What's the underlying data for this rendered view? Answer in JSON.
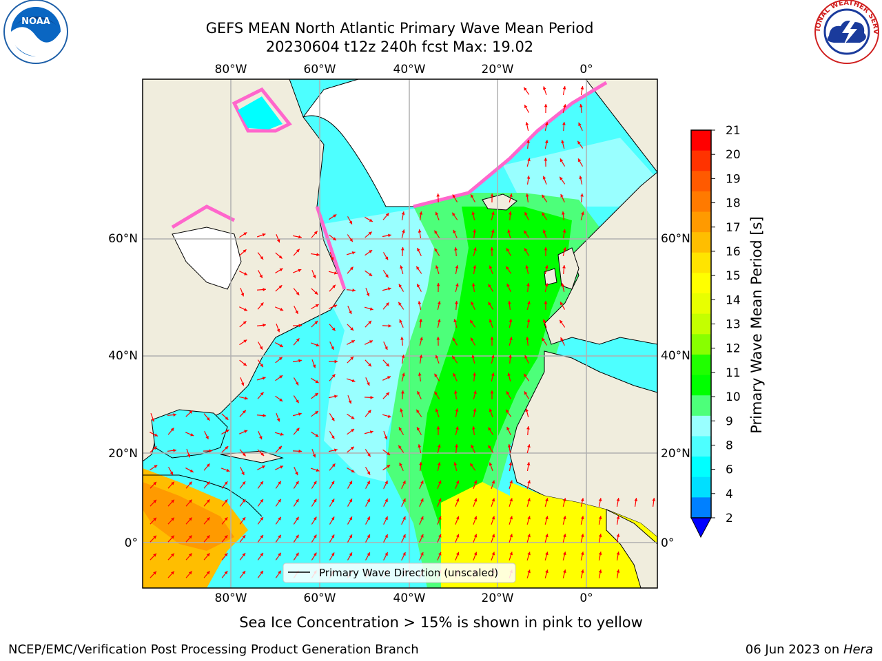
{
  "header": {
    "title_line1": "GEFS MEAN North Atlantic Primary Wave Mean Period",
    "title_line2": "20230604 t12z 240h fcst   Max: 19.02",
    "noaa_logo_text": "NOAA",
    "nws_logo_text": "NATIONAL WEATHER SERVICE"
  },
  "map": {
    "lon_ticks": [
      "80°W",
      "60°W",
      "40°W",
      "20°W",
      "0°"
    ],
    "lat_ticks": [
      "60°N",
      "40°N",
      "20°N",
      "0°"
    ],
    "lon_values": [
      -80,
      -60,
      -40,
      -20,
      0
    ],
    "lat_values": [
      60,
      40,
      20,
      0
    ],
    "extent": {
      "lon": [
        -100,
        15
      ],
      "lat": [
        -8,
        75
      ]
    },
    "legend_label": "Primary Wave Direction (unscaled)",
    "colors": {
      "land": "#f0eddd",
      "ice_free_land": "#ffffff",
      "grid": "#b0b0b0",
      "arrow": "#ff0000"
    }
  },
  "colorbar": {
    "label": "Primary Wave Mean Period [s]",
    "ticks": [
      "21",
      "20",
      "19",
      "18",
      "17",
      "16",
      "15",
      "14",
      "13",
      "12",
      "11",
      "10",
      "9",
      "8",
      "6",
      "4",
      "2"
    ],
    "colors": [
      "#ff0000",
      "#ff3300",
      "#ff5a00",
      "#ff7a00",
      "#ff9a00",
      "#ffbe00",
      "#ffe400",
      "#ffff00",
      "#e8ff00",
      "#c4ff00",
      "#88ff00",
      "#20ff00",
      "#00ff00",
      "#4dff7a",
      "#99ffff",
      "#4dffff",
      "#00ffff",
      "#00dfff",
      "#0080ff"
    ],
    "extend_color": "#0000ff"
  },
  "caption": "Sea Ice Concentration > 15% is shown in pink to yellow",
  "footer": {
    "left": "NCEP/EMC/Verification Post Processing Product Generation Branch",
    "right_date": "06 Jun 2023 on ",
    "right_host": "Hera"
  }
}
